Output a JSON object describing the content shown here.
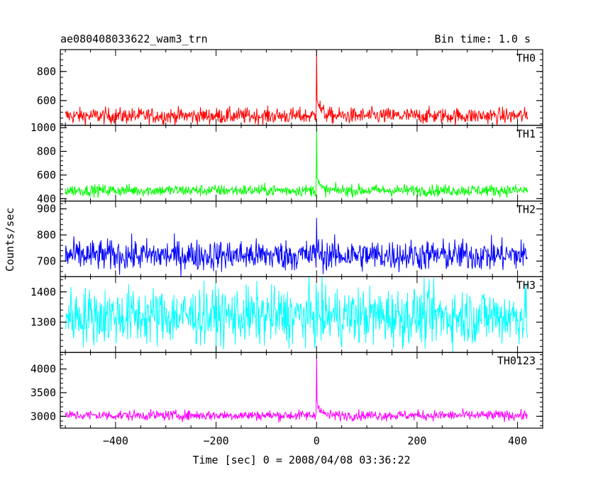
{
  "header": {
    "title": "ae080408033622_wam3_trn",
    "bin_time": "Bin time: 1.0 s"
  },
  "chart_data": {
    "type": "line",
    "title": "ae080408033622_wam3_trn",
    "subtitle": "Bin time: 1.0 s",
    "xlabel": "Time [sec] 0 = 2008/04/08 03:36:22",
    "ylabel": "Counts/sec",
    "xlim": [
      -510,
      450
    ],
    "x_ticks": [
      -400,
      -200,
      0,
      200,
      400
    ],
    "x_tick_labels": [
      "−400",
      "−200",
      "0",
      "200",
      "400"
    ],
    "x_data_range": [
      -500,
      420
    ],
    "grid": false,
    "panels": [
      {
        "name": "TH0",
        "color": "#ff0000",
        "ylim": [
          430,
          950
        ],
        "y_ticks": [
          600,
          800
        ],
        "y_tick_labels": [
          "600",
          "800"
        ],
        "baseline": 495,
        "noise": 28,
        "peak": 950,
        "decay_amp": 160,
        "decay_tau": 7
      },
      {
        "name": "TH1",
        "color": "#00ff00",
        "ylim": [
          380,
          1020
        ],
        "y_ticks": [
          400,
          600,
          800,
          1000
        ],
        "y_tick_labels": [
          "400",
          "600",
          "800",
          "1000"
        ],
        "baseline": 470,
        "noise": 25,
        "peak": 1010,
        "decay_amp": 140,
        "decay_tau": 5
      },
      {
        "name": "TH2",
        "color": "#0000ff",
        "ylim": [
          640,
          930
        ],
        "y_ticks": [
          700,
          800,
          900
        ],
        "y_tick_labels": [
          "700",
          "800",
          "900"
        ],
        "baseline": 722,
        "noise": 30,
        "peak": 865,
        "decay_amp": 35,
        "decay_tau": 4
      },
      {
        "name": "TH3",
        "color": "#00ffff",
        "ylim": [
          1200,
          1450
        ],
        "y_ticks": [
          1300,
          1400
        ],
        "y_tick_labels": [
          "1300",
          "1400"
        ],
        "baseline": 1320,
        "noise": 48,
        "peak": 1380,
        "decay_amp": 0,
        "decay_tau": 1
      },
      {
        "name": "TH0123",
        "color": "#ff00ff",
        "ylim": [
          2750,
          4350
        ],
        "y_ticks": [
          3000,
          3500,
          4000
        ],
        "y_tick_labels": [
          "3000",
          "3500",
          "4000"
        ],
        "baseline": 3020,
        "noise": 55,
        "peak": 4300,
        "decay_amp": 420,
        "decay_tau": 6
      }
    ]
  }
}
